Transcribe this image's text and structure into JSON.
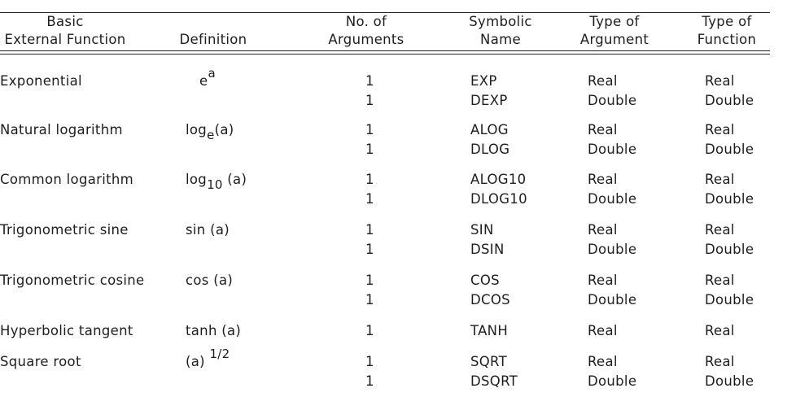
{
  "table": {
    "columns": [
      [
        "Basic",
        "External Function"
      ],
      [
        "Definition"
      ],
      [
        "No. of",
        "Arguments"
      ],
      [
        "Symbolic",
        "Name"
      ],
      [
        "Type of",
        "Argument"
      ],
      [
        "Type of",
        "Function"
      ]
    ],
    "rows": [
      {
        "function": "Exponential",
        "definition": [
          {
            "text": "e"
          },
          {
            "sup": "a"
          }
        ],
        "entries": [
          {
            "args": 1,
            "symbol": "EXP",
            "argument": "Real",
            "result": "Real"
          },
          {
            "args": 1,
            "symbol": "DEXP",
            "argument": "Double",
            "result": "Double"
          }
        ]
      },
      {
        "function": "Natural logarithm",
        "definition": [
          {
            "text": "log"
          },
          {
            "sub": "e"
          },
          {
            "text": "(a)"
          }
        ],
        "entries": [
          {
            "args": 1,
            "symbol": "ALOG",
            "argument": "Real",
            "result": "Real"
          },
          {
            "args": 1,
            "symbol": "DLOG",
            "argument": "Double",
            "result": "Double"
          }
        ]
      },
      {
        "function": "Common logarithm",
        "definition": [
          {
            "text": "log"
          },
          {
            "sub": "10"
          },
          {
            "text": " (a)"
          }
        ],
        "entries": [
          {
            "args": 1,
            "symbol": "ALOG10",
            "argument": "Real",
            "result": "Real"
          },
          {
            "args": 1,
            "symbol": "DLOG10",
            "argument": "Double",
            "result": "Double"
          }
        ]
      },
      {
        "function": "Trigonometric sine",
        "definition": [
          {
            "text": "sin (a)"
          }
        ],
        "entries": [
          {
            "args": 1,
            "symbol": "SIN",
            "argument": "Real",
            "result": "Real"
          },
          {
            "args": 1,
            "symbol": "DSIN",
            "argument": "Double",
            "result": "Double"
          }
        ]
      },
      {
        "function": "Trigonometric cosine",
        "definition": [
          {
            "text": "cos (a)"
          }
        ],
        "entries": [
          {
            "args": 1,
            "symbol": "COS",
            "argument": "Real",
            "result": "Real"
          },
          {
            "args": 1,
            "symbol": "DCOS",
            "argument": "Double",
            "result": "Double"
          }
        ]
      },
      {
        "function": "Hyperbolic tangent",
        "definition": [
          {
            "text": "tanh (a)"
          }
        ],
        "entries": [
          {
            "args": 1,
            "symbol": "TANH",
            "argument": "Real",
            "result": "Real"
          }
        ]
      },
      {
        "function": "Square root",
        "definition": [
          {
            "text": "(a) "
          },
          {
            "sup": "1/2"
          }
        ],
        "entries": [
          {
            "args": 1,
            "symbol": "SQRT",
            "argument": "Real",
            "result": "Real"
          },
          {
            "args": 1,
            "symbol": "DSQRT",
            "argument": "Double",
            "result": "Double"
          }
        ]
      }
    ]
  }
}
